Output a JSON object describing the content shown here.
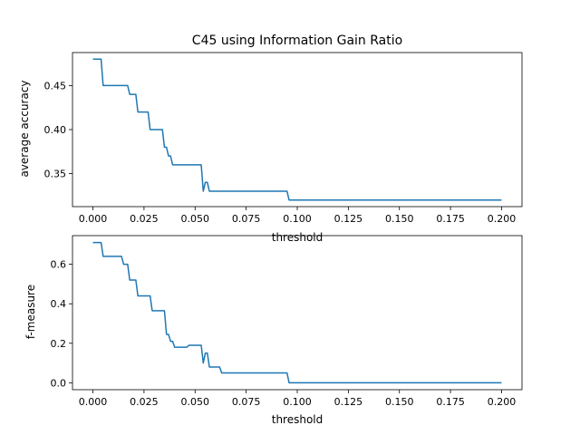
{
  "chart_data": [
    {
      "type": "line",
      "title": "C45 using Information Gain Ratio",
      "xlabel": "threshold",
      "ylabel": "average accuracy",
      "xlim": [
        -0.01,
        0.21
      ],
      "ylim": [
        0.3125,
        0.4875
      ],
      "xticks": [
        0.0,
        0.025,
        0.05,
        0.075,
        0.1,
        0.125,
        0.15,
        0.175,
        0.2
      ],
      "xtick_labels": [
        "0.000",
        "0.025",
        "0.050",
        "0.075",
        "0.100",
        "0.125",
        "0.150",
        "0.175",
        "0.200"
      ],
      "yticks": [
        0.35,
        0.4,
        0.45
      ],
      "ytick_labels": [
        "0.35",
        "0.40",
        "0.45"
      ],
      "grid": false,
      "color": "#1f77b4",
      "series": [
        {
          "x": [
            0.0,
            0.004,
            0.005,
            0.017,
            0.018,
            0.021,
            0.022,
            0.027,
            0.028,
            0.034,
            0.035,
            0.036,
            0.037,
            0.038,
            0.039,
            0.053,
            0.054,
            0.055,
            0.056,
            0.057,
            0.058,
            0.095,
            0.096,
            0.2
          ],
          "y": [
            0.48,
            0.48,
            0.45,
            0.45,
            0.44,
            0.44,
            0.42,
            0.42,
            0.4,
            0.4,
            0.38,
            0.38,
            0.37,
            0.37,
            0.36,
            0.36,
            0.33,
            0.34,
            0.34,
            0.33,
            0.33,
            0.33,
            0.32,
            0.32
          ]
        }
      ]
    },
    {
      "type": "line",
      "title": "",
      "xlabel": "threshold",
      "ylabel": "f-measure",
      "xlim": [
        -0.01,
        0.21
      ],
      "ylim": [
        -0.035,
        0.745
      ],
      "xticks": [
        0.0,
        0.025,
        0.05,
        0.075,
        0.1,
        0.125,
        0.15,
        0.175,
        0.2
      ],
      "xtick_labels": [
        "0.000",
        "0.025",
        "0.050",
        "0.075",
        "0.100",
        "0.125",
        "0.150",
        "0.175",
        "0.200"
      ],
      "yticks": [
        0.0,
        0.2,
        0.4,
        0.6
      ],
      "ytick_labels": [
        "0.0",
        "0.2",
        "0.4",
        "0.6"
      ],
      "grid": false,
      "color": "#1f77b4",
      "series": [
        {
          "x": [
            0.0,
            0.004,
            0.005,
            0.014,
            0.015,
            0.017,
            0.018,
            0.021,
            0.022,
            0.028,
            0.029,
            0.035,
            0.036,
            0.037,
            0.038,
            0.039,
            0.04,
            0.046,
            0.047,
            0.053,
            0.054,
            0.055,
            0.056,
            0.057,
            0.058,
            0.062,
            0.063,
            0.095,
            0.096,
            0.2
          ],
          "y": [
            0.71,
            0.71,
            0.64,
            0.64,
            0.6,
            0.6,
            0.52,
            0.52,
            0.44,
            0.44,
            0.365,
            0.365,
            0.245,
            0.245,
            0.21,
            0.21,
            0.18,
            0.18,
            0.19,
            0.19,
            0.1,
            0.15,
            0.15,
            0.08,
            0.08,
            0.08,
            0.05,
            0.05,
            0.0,
            0.0
          ]
        }
      ]
    }
  ]
}
